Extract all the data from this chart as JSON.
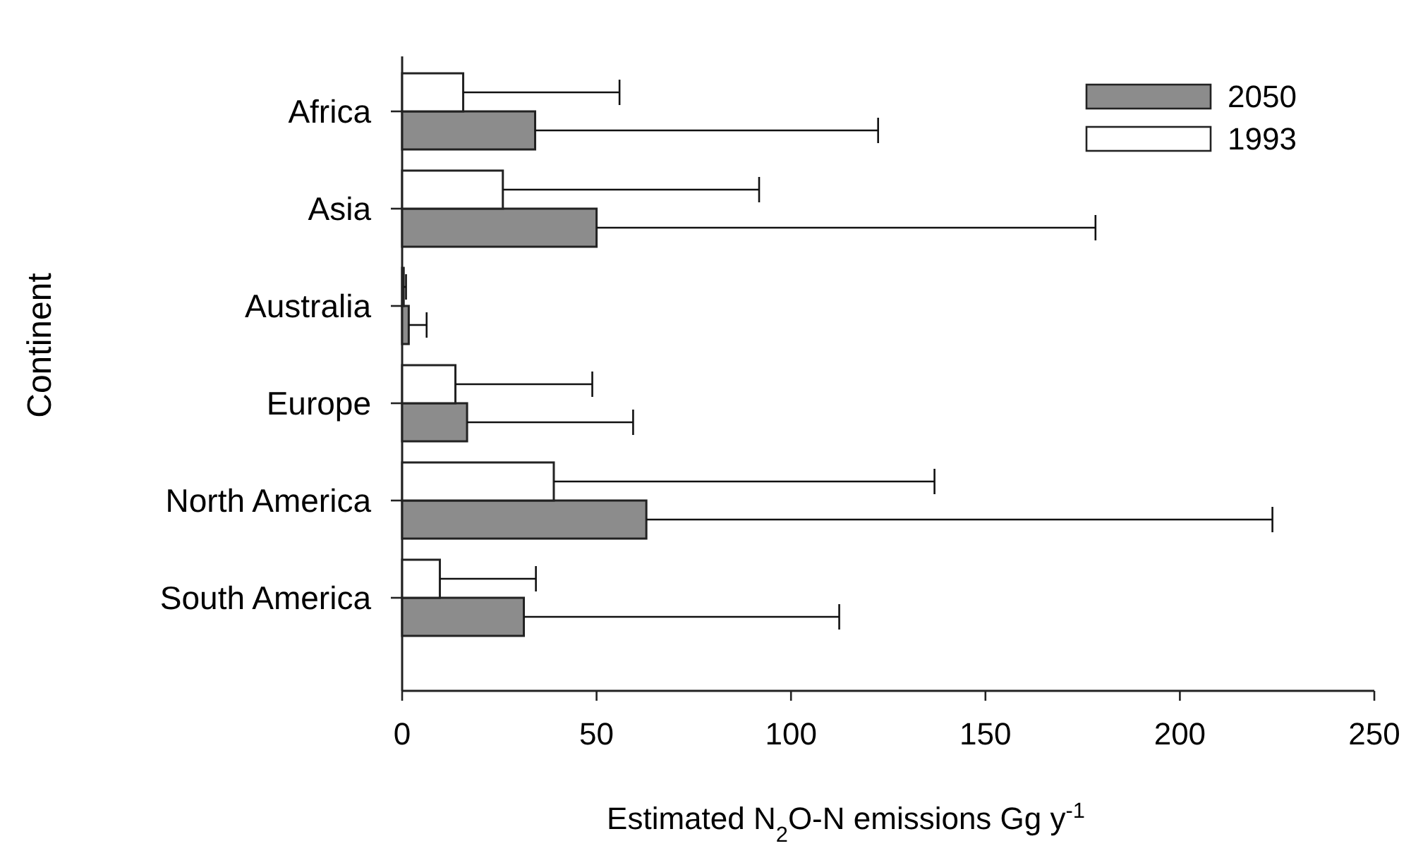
{
  "chart_data": {
    "type": "bar",
    "orientation": "horizontal",
    "categories": [
      "Africa",
      "Asia",
      "Australia",
      "Europe",
      "North America",
      "South America"
    ],
    "series": [
      {
        "name": "2050",
        "color": "#8c8c8c",
        "values": [
          34.2,
          50.0,
          1.7,
          16.7,
          62.8,
          31.3
        ],
        "errors": [
          [
            34.2,
            122.4
          ],
          [
            50.0,
            178.3
          ],
          [
            1.7,
            6.3
          ],
          [
            16.7,
            59.4
          ],
          [
            62.8,
            223.8
          ],
          [
            31.3,
            112.4
          ]
        ]
      },
      {
        "name": "1993",
        "color": "#ffffff",
        "values": [
          15.7,
          25.9,
          0.4,
          13.7,
          39.0,
          9.7
        ],
        "errors": [
          [
            15.7,
            55.9
          ],
          [
            25.9,
            91.8
          ],
          [
            0.4,
            1.0
          ],
          [
            13.7,
            48.9
          ],
          [
            39.0,
            136.9
          ],
          [
            9.7,
            34.4
          ]
        ]
      }
    ],
    "xlim": [
      0,
      250
    ],
    "xticks": [
      0,
      50,
      100,
      150,
      200,
      250
    ],
    "xlabel": "Estimated N$_{2}$O-N emissions Gg y$^{-1}$",
    "ylabel": "Continent",
    "legend": "top right"
  }
}
